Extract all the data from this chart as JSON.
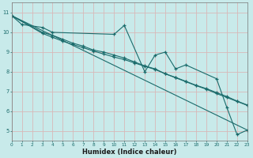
{
  "xlabel": "Humidex (Indice chaleur)",
  "bg_color": "#c8eaea",
  "grid_color": "#d8b8b8",
  "line_color": "#1a6b6b",
  "xlim": [
    0,
    23
  ],
  "ylim": [
    4.5,
    11.5
  ],
  "xticks": [
    0,
    1,
    2,
    3,
    4,
    5,
    6,
    7,
    8,
    9,
    10,
    11,
    12,
    13,
    14,
    15,
    16,
    17,
    18,
    19,
    20,
    21,
    22,
    23
  ],
  "yticks": [
    5,
    6,
    7,
    8,
    9,
    10,
    11
  ],
  "series": [
    {
      "x": [
        0,
        1,
        3,
        4,
        10,
        11,
        13,
        14,
        15,
        16,
        17,
        20,
        21,
        22,
        23
      ],
      "y": [
        10.85,
        10.4,
        10.25,
        10.0,
        9.9,
        10.35,
        8.0,
        8.85,
        9.0,
        8.15,
        8.35,
        7.65,
        6.2,
        4.82,
        5.05
      ],
      "marker": true
    },
    {
      "x": [
        0,
        3,
        4,
        5,
        6,
        7,
        8,
        9,
        10,
        11,
        12,
        13,
        14,
        15,
        16,
        17,
        18,
        19,
        20,
        21,
        22,
        23
      ],
      "y": [
        10.85,
        10.0,
        9.85,
        9.65,
        9.45,
        9.3,
        9.1,
        9.0,
        8.85,
        8.7,
        8.5,
        8.3,
        8.15,
        7.9,
        7.7,
        7.5,
        7.3,
        7.12,
        6.9,
        6.7,
        6.5,
        6.3
      ],
      "marker": true
    },
    {
      "x": [
        0,
        3,
        4,
        5,
        6,
        7,
        8,
        9,
        10,
        11,
        12,
        13,
        14,
        15,
        16,
        17,
        18,
        19,
        20,
        21,
        22,
        23
      ],
      "y": [
        10.85,
        9.95,
        9.75,
        9.55,
        9.38,
        9.22,
        9.05,
        8.9,
        8.75,
        8.62,
        8.45,
        8.28,
        8.12,
        7.9,
        7.72,
        7.52,
        7.32,
        7.15,
        6.95,
        6.75,
        6.52,
        6.32
      ],
      "marker": true
    },
    {
      "x": [
        0,
        23
      ],
      "y": [
        10.85,
        5.05
      ],
      "marker": false
    }
  ]
}
